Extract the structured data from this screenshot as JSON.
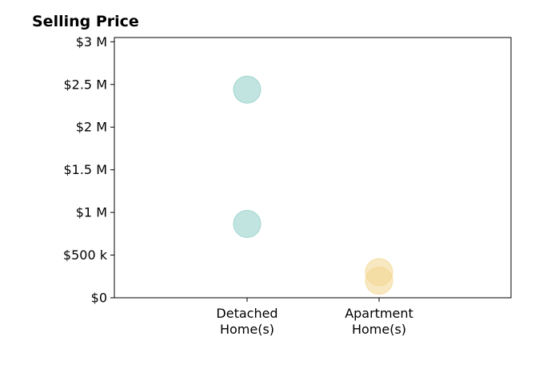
{
  "chart_data": {
    "type": "scatter",
    "title": "Selling Price",
    "xlabel": "",
    "ylabel": "",
    "categories": [
      "Detached\nHome(s)",
      "Apartment\nHome(s)"
    ],
    "ylim": [
      0,
      3050000
    ],
    "y_ticks": [
      {
        "value": 0,
        "label": "$0"
      },
      {
        "value": 500000,
        "label": "$500 k"
      },
      {
        "value": 1000000,
        "label": "$1 M"
      },
      {
        "value": 1500000,
        "label": "$1.5 M"
      },
      {
        "value": 2000000,
        "label": "$2 M"
      },
      {
        "value": 2500000,
        "label": "$2.5 M"
      },
      {
        "value": 3000000,
        "label": "$3 M"
      }
    ],
    "grid": false,
    "series": [
      {
        "category": "Detached\nHome(s)",
        "color": "#8ecdc6",
        "values": [
          2440000,
          865000
        ]
      },
      {
        "category": "Apartment\nHome(s)",
        "color": "#f3d68e",
        "values": [
          300000,
          200000
        ]
      }
    ]
  }
}
